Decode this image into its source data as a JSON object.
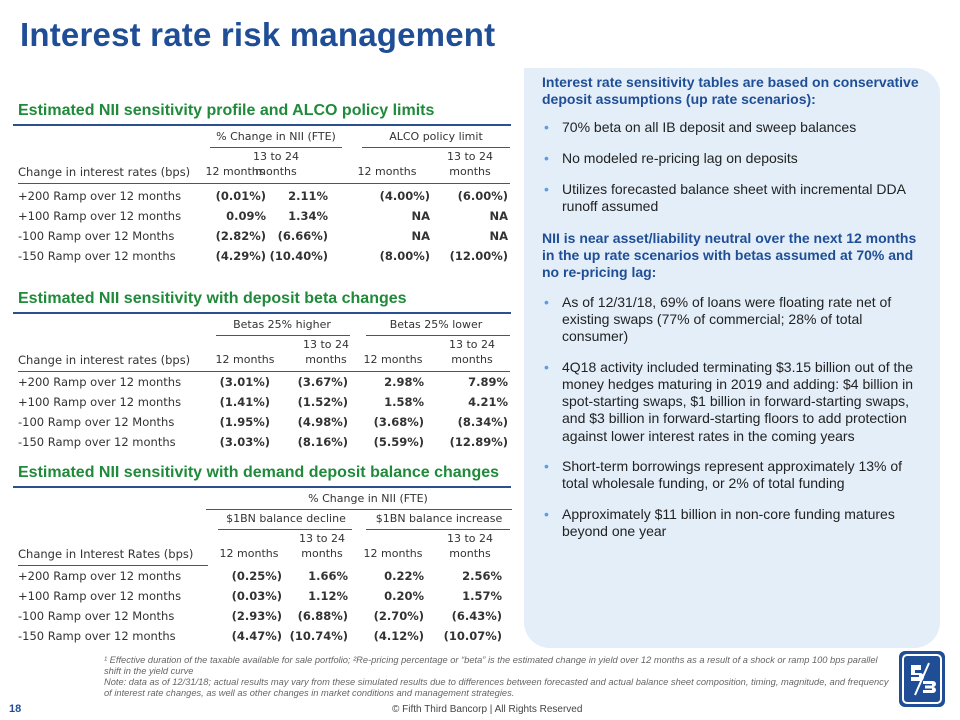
{
  "title": "Interest rate risk management",
  "sections": {
    "s1": "Estimated NII sensitivity profile and ALCO policy limits",
    "s2": "Estimated NII sensitivity with deposit beta changes",
    "s3": "Estimated NII sensitivity with demand deposit balance changes"
  },
  "tables": {
    "t1": {
      "group_left": "% Change in NII (FTE)",
      "group_right": "ALCO policy limit",
      "row_header": "Change in interest rates (bps)",
      "col_12": "12 months",
      "col_13a": "13 to 24",
      "col_13b": "months",
      "rows": [
        {
          "label": "+200 Ramp over 12 months",
          "v": [
            "(0.01%)",
            "2.11%",
            "(4.00%)",
            "(6.00%)"
          ]
        },
        {
          "label": "+100 Ramp over 12 months",
          "v": [
            "0.09%",
            "1.34%",
            "NA",
            "NA"
          ]
        },
        {
          "label": "-100 Ramp over 12 Months",
          "v": [
            "(2.82%)",
            "(6.66%)",
            "NA",
            "NA"
          ]
        },
        {
          "label": "-150 Ramp over 12 months",
          "v": [
            "(4.29%)",
            "(10.40%)",
            "(8.00%)",
            "(12.00%)"
          ]
        }
      ]
    },
    "t2": {
      "group_left": "Betas 25% higher",
      "group_right": "Betas 25% lower",
      "row_header": "Change in interest rates (bps)",
      "col_12": "12 months",
      "col_13a": "13 to 24",
      "col_13b": "months",
      "rows": [
        {
          "label": "+200 Ramp over 12 months",
          "v": [
            "(3.01%)",
            "(3.67%)",
            "2.98%",
            "7.89%"
          ]
        },
        {
          "label": "+100 Ramp over 12 months",
          "v": [
            "(1.41%)",
            "(1.52%)",
            "1.58%",
            "4.21%"
          ]
        },
        {
          "label": "-100 Ramp over 12 Months",
          "v": [
            "(1.95%)",
            "(4.98%)",
            "(3.68%)",
            "(8.34%)"
          ]
        },
        {
          "label": "-150 Ramp over 12 months",
          "v": [
            "(3.03%)",
            "(8.16%)",
            "(5.59%)",
            "(12.89%)"
          ]
        }
      ]
    },
    "t3": {
      "top_group": "% Change in NII (FTE)",
      "group_left": "$1BN balance decline",
      "group_right": "$1BN balance increase",
      "row_header": "Change in Interest Rates (bps)",
      "col_12": "12 months",
      "col_13a": "13 to 24",
      "col_13b": "months",
      "rows": [
        {
          "label": "+200 Ramp over 12 months",
          "v": [
            "(0.25%)",
            "1.66%",
            "0.22%",
            "2.56%"
          ]
        },
        {
          "label": "+100 Ramp over 12 months",
          "v": [
            "(0.03%)",
            "1.12%",
            "0.20%",
            "1.57%"
          ]
        },
        {
          "label": "-100 Ramp over 12 Months",
          "v": [
            "(2.93%)",
            "(6.88%)",
            "(2.70%)",
            "(6.43%)"
          ]
        },
        {
          "label": "-150 Ramp over 12 months",
          "v": [
            "(4.47%)",
            "(10.74%)",
            "(4.12%)",
            "(10.07%)"
          ]
        }
      ]
    }
  },
  "panel": {
    "head1": "Interest rate sensitivity tables are based on conservative deposit assumptions (up rate scenarios):",
    "b1": "70% beta on all IB deposit and sweep balances",
    "b2": "No modeled re-pricing lag on deposits",
    "b3": "Utilizes forecasted balance sheet with incremental DDA runoff assumed",
    "head2": "NII is near asset/liability neutral over the next 12 months in the up rate scenarios with betas assumed at 70% and no re-pricing lag:",
    "b4": "As of 12/31/18, 69% of loans were floating rate net of existing swaps (77% of commercial; 28% of total consumer)",
    "b5": "4Q18 activity included terminating $3.15 billion out of the money hedges maturing in 2019 and adding: $4 billion in spot-starting swaps, $1 billion in forward-starting swaps, and $3 billion in forward-starting floors to add protection against lower interest rates in the coming years",
    "b6": "Short-term borrowings represent approximately 13% of total wholesale funding, or 2% of total funding",
    "b7": "Approximately $11 billion in non-core funding matures beyond one year",
    "bullet": "•"
  },
  "footnote1": "¹ Effective duration of the taxable available for sale portfolio; ²Re-pricing percentage or “beta” is the estimated change in yield over 12 months as a result of a shock or ramp 100 bps parallel shift in the yield curve",
  "footnote2": "Note: data as of 12/31/18; actual results may vary from these simulated results due to differences between forecasted and actual balance sheet composition, timing, magnitude, and frequency of interest rate changes, as well as other changes in market conditions and management strategies.",
  "page_number": "18",
  "copyright": "© Fifth Third Bancorp | All Rights Reserved",
  "logo_text": "5/3",
  "colors": {
    "title": "#1f4e96",
    "section": "#1f8a3a",
    "panel_bg": "#e3eef9",
    "bullet": "#5a9ee0"
  }
}
